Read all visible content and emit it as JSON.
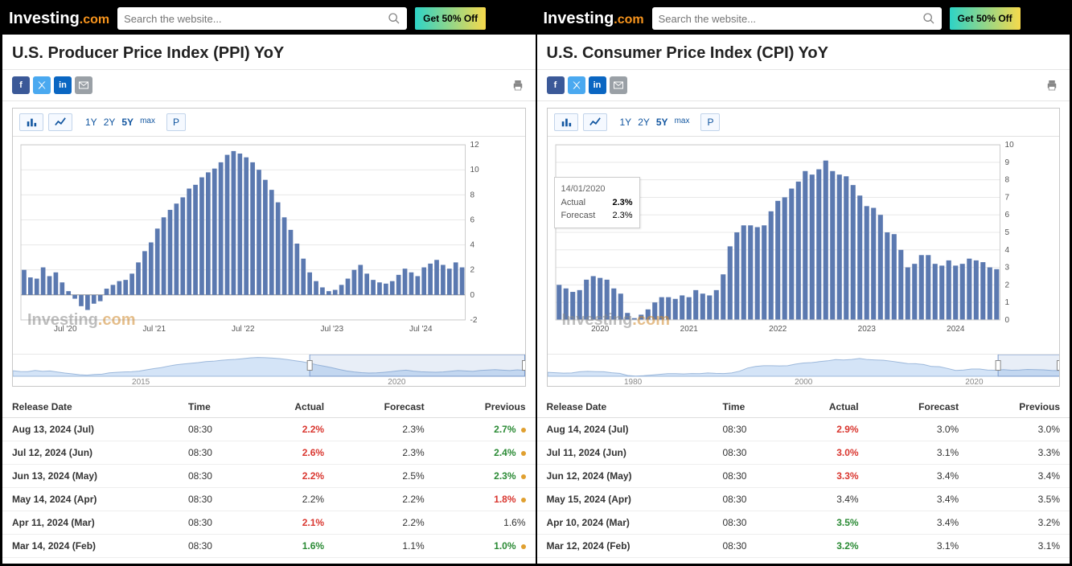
{
  "common": {
    "logo_text": "Investing",
    "logo_dotcom": ".com",
    "search_placeholder": "Search the website...",
    "promo": "Get 50% Off",
    "chart_toolbar": {
      "ranges": [
        "1Y",
        "2Y",
        "5Y",
        "max"
      ],
      "p_button": "P"
    },
    "table_headers": {
      "release": "Release Date",
      "time": "Time",
      "actual": "Actual",
      "forecast": "Forecast",
      "previous": "Previous"
    },
    "bar_color": "#5b79b0",
    "grid_color": "#e8e8e8",
    "axis_font_color": "#555555"
  },
  "left": {
    "title": "U.S. Producer Price Index (PPI) YoY",
    "chart": {
      "type": "bar",
      "ylim": [
        -2,
        12
      ],
      "ytick_step": 2,
      "x_labels": [
        "Jul '20",
        "Jul '21",
        "Jul '22",
        "Jul '23",
        "Jul '24"
      ],
      "values": [
        2.0,
        1.4,
        1.3,
        2.2,
        1.5,
        1.8,
        1.0,
        0.3,
        -0.3,
        -0.9,
        -1.2,
        -0.7,
        -0.5,
        0.5,
        0.8,
        1.1,
        1.2,
        1.7,
        2.6,
        3.5,
        4.2,
        5.3,
        6.2,
        6.8,
        7.3,
        7.8,
        8.5,
        8.8,
        9.4,
        9.8,
        10.1,
        10.6,
        11.2,
        11.5,
        11.3,
        11.0,
        10.6,
        10.0,
        9.2,
        8.4,
        7.4,
        6.2,
        5.2,
        4.1,
        2.9,
        1.8,
        1.1,
        0.6,
        0.3,
        0.4,
        0.8,
        1.3,
        2.0,
        2.4,
        1.7,
        1.2,
        1.0,
        0.9,
        1.1,
        1.6,
        2.1,
        1.8,
        1.5,
        2.2,
        2.5,
        2.8,
        2.4,
        2.1,
        2.6,
        2.2
      ],
      "navigator_labels": [
        "2015",
        "2020"
      ]
    },
    "active_range": "5Y",
    "rows": [
      {
        "date": "Aug 13, 2024 (Jul)",
        "time": "08:30",
        "actual": "2.2%",
        "actual_color": "red",
        "forecast": "2.3%",
        "previous": "2.7%",
        "prev_color": "green",
        "dot": true
      },
      {
        "date": "Jul 12, 2024 (Jun)",
        "time": "08:30",
        "actual": "2.6%",
        "actual_color": "red",
        "forecast": "2.3%",
        "previous": "2.4%",
        "prev_color": "green",
        "dot": true
      },
      {
        "date": "Jun 13, 2024 (May)",
        "time": "08:30",
        "actual": "2.2%",
        "actual_color": "red",
        "forecast": "2.5%",
        "previous": "2.3%",
        "prev_color": "green",
        "dot": true
      },
      {
        "date": "May 14, 2024 (Apr)",
        "time": "08:30",
        "actual": "2.2%",
        "actual_color": "black",
        "forecast": "2.2%",
        "previous": "1.8%",
        "prev_color": "red",
        "dot": true
      },
      {
        "date": "Apr 11, 2024 (Mar)",
        "time": "08:30",
        "actual": "2.1%",
        "actual_color": "red",
        "forecast": "2.2%",
        "previous": "1.6%",
        "prev_color": "black",
        "dot": false
      },
      {
        "date": "Mar 14, 2024 (Feb)",
        "time": "08:30",
        "actual": "1.6%",
        "actual_color": "green",
        "forecast": "1.1%",
        "previous": "1.0%",
        "prev_color": "green",
        "dot": true
      }
    ]
  },
  "right": {
    "title": "U.S. Consumer Price Index (CPI) YoY",
    "chart": {
      "type": "bar",
      "ylim": [
        0,
        10
      ],
      "ytick_step": 1,
      "x_labels": [
        "2020",
        "2021",
        "2022",
        "2023",
        "2024"
      ],
      "values": [
        2.0,
        1.8,
        1.6,
        1.7,
        2.3,
        2.5,
        2.4,
        2.3,
        1.8,
        1.5,
        0.4,
        0.1,
        0.3,
        0.6,
        1.0,
        1.3,
        1.3,
        1.2,
        1.4,
        1.3,
        1.7,
        1.5,
        1.4,
        1.7,
        2.6,
        4.2,
        5.0,
        5.4,
        5.4,
        5.3,
        5.4,
        6.2,
        6.8,
        7.0,
        7.5,
        7.9,
        8.5,
        8.3,
        8.6,
        9.1,
        8.5,
        8.3,
        8.2,
        7.7,
        7.1,
        6.5,
        6.4,
        6.0,
        5.0,
        4.9,
        4.0,
        3.0,
        3.2,
        3.7,
        3.7,
        3.2,
        3.1,
        3.4,
        3.1,
        3.2,
        3.5,
        3.4,
        3.3,
        3.0,
        2.9
      ],
      "navigator_labels": [
        "1980",
        "2000",
        "2020"
      ]
    },
    "active_range": "5Y",
    "tooltip": {
      "date": "14/01/2020",
      "actual_label": "Actual",
      "actual_value": "2.3%",
      "forecast_label": "Forecast",
      "forecast_value": "2.3%"
    },
    "rows": [
      {
        "date": "Aug 14, 2024 (Jul)",
        "time": "08:30",
        "actual": "2.9%",
        "actual_color": "red",
        "forecast": "3.0%",
        "previous": "3.0%",
        "prev_color": "black",
        "dot": false
      },
      {
        "date": "Jul 11, 2024 (Jun)",
        "time": "08:30",
        "actual": "3.0%",
        "actual_color": "red",
        "forecast": "3.1%",
        "previous": "3.3%",
        "prev_color": "black",
        "dot": false
      },
      {
        "date": "Jun 12, 2024 (May)",
        "time": "08:30",
        "actual": "3.3%",
        "actual_color": "red",
        "forecast": "3.4%",
        "previous": "3.4%",
        "prev_color": "black",
        "dot": false
      },
      {
        "date": "May 15, 2024 (Apr)",
        "time": "08:30",
        "actual": "3.4%",
        "actual_color": "black",
        "forecast": "3.4%",
        "previous": "3.5%",
        "prev_color": "black",
        "dot": false
      },
      {
        "date": "Apr 10, 2024 (Mar)",
        "time": "08:30",
        "actual": "3.5%",
        "actual_color": "green",
        "forecast": "3.4%",
        "previous": "3.2%",
        "prev_color": "black",
        "dot": false
      },
      {
        "date": "Mar 12, 2024 (Feb)",
        "time": "08:30",
        "actual": "3.2%",
        "actual_color": "green",
        "forecast": "3.1%",
        "previous": "3.1%",
        "prev_color": "black",
        "dot": false
      }
    ]
  }
}
